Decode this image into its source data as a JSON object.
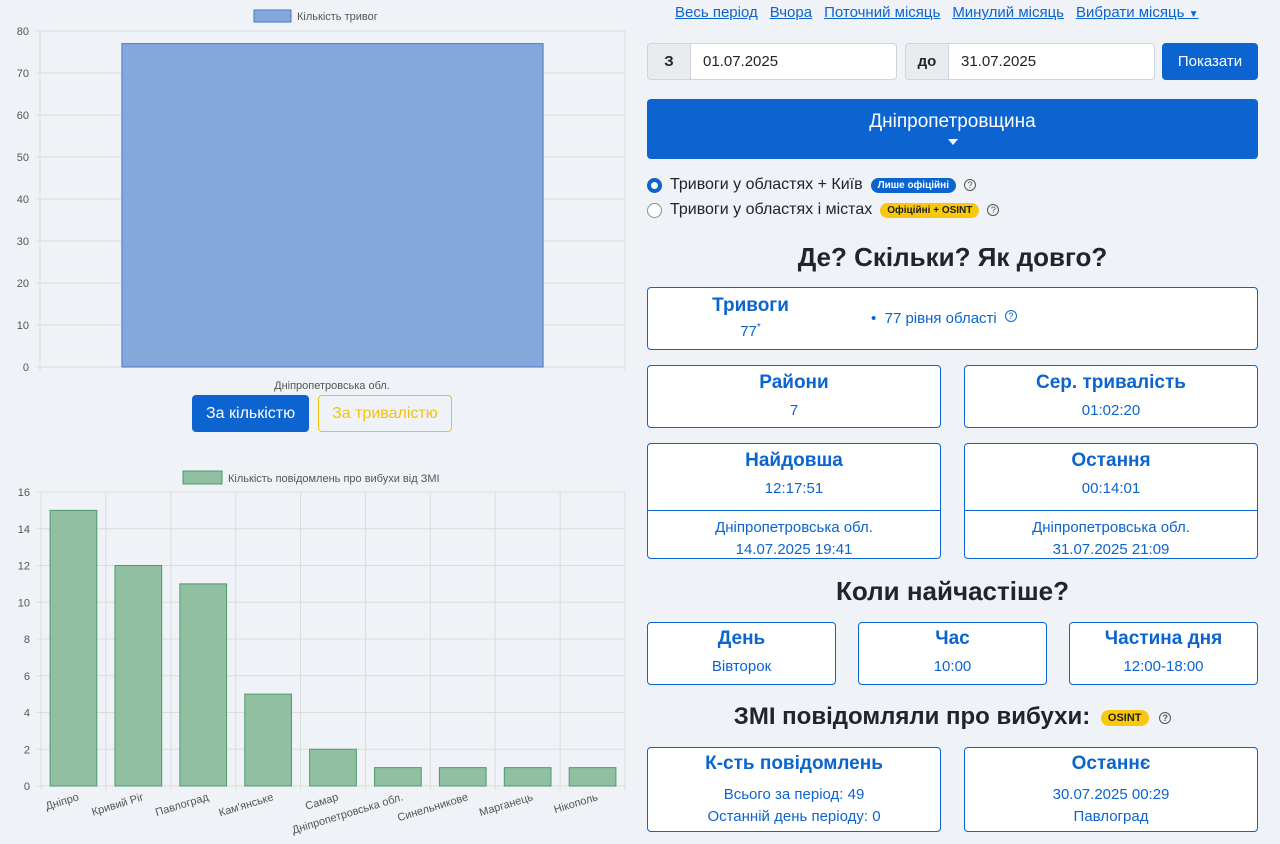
{
  "chart1": {
    "legend": "Кількість тривог",
    "yticks": [
      "80",
      "70",
      "60",
      "50",
      "40",
      "30",
      "20",
      "10",
      "0"
    ],
    "category": "Дніпропетровська обл.",
    "btn_count": "За кількістю",
    "btn_duration": "За тривалістю",
    "colors": {
      "bar": "#84a8dc",
      "border": "#4e79c1"
    }
  },
  "chart2": {
    "legend": "Кількість повідомлень про вибухи від ЗМІ",
    "yticks": [
      "16",
      "14",
      "12",
      "10",
      "8",
      "6",
      "4",
      "2",
      "0"
    ],
    "colors": {
      "bar": "#90bfa2",
      "border": "#4f9a6a"
    }
  },
  "chart_data": [
    {
      "type": "bar",
      "title": "",
      "legend": [
        "Кількість тривог"
      ],
      "categories": [
        "Дніпропетровська обл."
      ],
      "series": [
        {
          "name": "Кількість тривог",
          "values": [
            77
          ]
        }
      ],
      "ylim": [
        0,
        80
      ],
      "grid": true,
      "legend_position": "top"
    },
    {
      "type": "bar",
      "title": "",
      "legend": [
        "Кількість повідомлень про вибухи від ЗМІ"
      ],
      "categories": [
        "Дніпро",
        "Кривий Ріг",
        "Павлоград",
        "Кам'янське",
        "Самар",
        "Дніпропетровська обл.",
        "Синельникове",
        "Марганець",
        "Нікополь"
      ],
      "series": [
        {
          "name": "Кількість повідомлень про вибухи від ЗМІ",
          "values": [
            15,
            12,
            11,
            5,
            2,
            1,
            1,
            1,
            1
          ]
        }
      ],
      "ylim": [
        0,
        16
      ],
      "grid": true,
      "legend_position": "top"
    }
  ],
  "period": {
    "links": [
      "Весь період",
      "Вчора",
      "Поточний місяць",
      "Минулий місяць",
      "Вибрати місяць"
    ],
    "from_prefix": "З",
    "from_value": "01.07.2025",
    "to_prefix": "до",
    "to_value": "31.07.2025",
    "show": "Показати"
  },
  "region": "Дніпропетровщина",
  "filters": [
    {
      "label": "Тривоги у областях + Київ",
      "pill": "Лише офіційні",
      "checked": true
    },
    {
      "label": "Тривоги у областях і містах",
      "pill": "Офіційні + OSINT",
      "checked": false
    }
  ],
  "sections": {
    "where": "Де? Скільки? Як довго?",
    "when": "Коли найчастіше?",
    "media": "ЗМІ повідомляли про вибухи:",
    "media_pill": "OSINT"
  },
  "alarms": {
    "title": "Тривоги",
    "value": "77",
    "mark": "*",
    "detail": "77 рівня області"
  },
  "districts": {
    "title": "Райони",
    "value": "7"
  },
  "avg_duration": {
    "title": "Сер. тривалість",
    "value": "01:02:20"
  },
  "longest": {
    "title": "Найдовша",
    "value": "12:17:51",
    "region": "Дніпропетровська обл.",
    "date": "14.07.2025 19:41"
  },
  "last": {
    "title": "Остання",
    "value": "00:14:01",
    "region": "Дніпропетровська обл.",
    "date": "31.07.2025 21:09"
  },
  "day": {
    "title": "День",
    "value": "Вівторок"
  },
  "hour": {
    "title": "Час",
    "value": "10:00"
  },
  "daypart": {
    "title": "Частина дня",
    "value": "12:00-18:00"
  },
  "reports": {
    "title": "К-сть повідомлень",
    "total": "Всього за період: 49",
    "lastday": "Останній день періоду: 0"
  },
  "latest": {
    "title": "Останнє",
    "date": "30.07.2025 00:29",
    "city": "Павлоград"
  }
}
